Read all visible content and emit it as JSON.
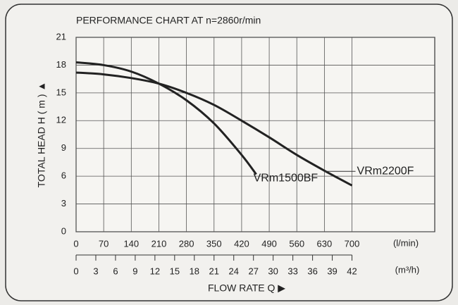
{
  "chart_data": {
    "type": "line",
    "title": "PERFORMANCE CHART AT n=2860r/min",
    "y_label": "TOTAL HEAD H ( m ) ▲",
    "x_label": "FLOW RATE Q ▶",
    "x_unit": "(l/min)",
    "x2_unit": "(m³/h)",
    "xlim": [
      0,
      910
    ],
    "xticks": [
      0,
      70,
      140,
      210,
      280,
      350,
      420,
      490,
      560,
      630,
      700
    ],
    "x2lim": [
      0,
      54.6
    ],
    "x2ticks": [
      0,
      3,
      6,
      9,
      12,
      15,
      18,
      21,
      24,
      27,
      30,
      33,
      36,
      39,
      42
    ],
    "ylim": [
      0,
      21
    ],
    "yticks": [
      0,
      3,
      6,
      9,
      12,
      15,
      18,
      21
    ],
    "grid": true,
    "series": [
      {
        "name": "VRm1500BF",
        "color": "#222222",
        "x": [
          0,
          70,
          140,
          210,
          280,
          350,
          420,
          457
        ],
        "values": [
          18.3,
          18.0,
          17.3,
          16.0,
          14.2,
          11.7,
          8.3,
          6.2
        ]
      },
      {
        "name": "VRm2200F",
        "color": "#222222",
        "x": [
          0,
          70,
          140,
          210,
          280,
          350,
          420,
          490,
          560,
          630,
          700
        ],
        "values": [
          17.2,
          17.0,
          16.6,
          16.0,
          15.0,
          13.7,
          12.0,
          10.2,
          8.3,
          6.6,
          5.0
        ]
      }
    ]
  }
}
